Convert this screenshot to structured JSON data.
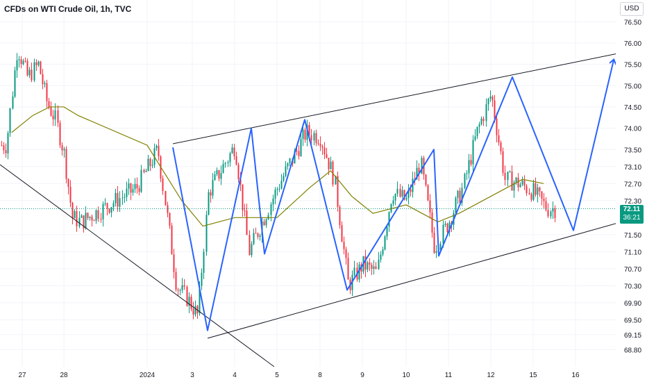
{
  "header": {
    "title": "CFDs on WTI Crude Oil, 1h, TVC",
    "currency_button": "USD"
  },
  "price_badge": {
    "last_price": "72.11",
    "countdown": "36:21"
  },
  "colors": {
    "up_candle": "#089981",
    "down_candle": "#f23645",
    "moving_average": "#808000",
    "zigzag": "#2962ff",
    "trendline": "#131722",
    "last_price_line": "#089981"
  },
  "chart_data": {
    "type": "candlestick",
    "title": "CFDs on WTI Crude Oil, 1h, TVC",
    "y_axis_labels": [
      "76.50",
      "76.00",
      "75.50",
      "75.00",
      "74.50",
      "74.00",
      "73.50",
      "73.10",
      "72.70",
      "72.30",
      "71.50",
      "71.10",
      "70.70",
      "70.30",
      "69.90",
      "69.50",
      "69.15",
      "68.80"
    ],
    "x_axis_labels": [
      "27",
      "28",
      "2024",
      "3",
      "4",
      "5",
      "8",
      "9",
      "10",
      "11",
      "12",
      "15",
      "16"
    ],
    "ylim": [
      68.5,
      76.8
    ],
    "last_price": 72.11,
    "close_series": [
      {
        "x": "27",
        "y": 73.6
      },
      {
        "x": "27",
        "y": 75.9
      },
      {
        "x": "27",
        "y": 75.2
      },
      {
        "x": "27",
        "y": 75.5
      },
      {
        "x": "28",
        "y": 74.6
      },
      {
        "x": "28",
        "y": 74.2
      },
      {
        "x": "28",
        "y": 73.4
      },
      {
        "x": "28",
        "y": 71.9
      },
      {
        "x": "28",
        "y": 71.8
      },
      {
        "x": "2024",
        "y": 72.6
      },
      {
        "x": "2024",
        "y": 73.5
      },
      {
        "x": "3",
        "y": 70.3
      },
      {
        "x": "3",
        "y": 70.0
      },
      {
        "x": "3",
        "y": 69.6
      },
      {
        "x": "3",
        "y": 72.5
      },
      {
        "x": "4",
        "y": 73.0
      },
      {
        "x": "4",
        "y": 73.6
      },
      {
        "x": "4",
        "y": 71.1
      },
      {
        "x": "5",
        "y": 72.6
      },
      {
        "x": "8",
        "y": 73.9
      },
      {
        "x": "8",
        "y": 73.8
      },
      {
        "x": "8",
        "y": 72.8
      },
      {
        "x": "9",
        "y": 70.3
      },
      {
        "x": "9",
        "y": 70.8
      },
      {
        "x": "9",
        "y": 70.6
      },
      {
        "x": "10",
        "y": 72.5
      },
      {
        "x": "10",
        "y": 72.3
      },
      {
        "x": "10",
        "y": 73.2
      },
      {
        "x": "11",
        "y": 71.2
      },
      {
        "x": "11",
        "y": 71.8
      },
      {
        "x": "11",
        "y": 72.6
      },
      {
        "x": "12",
        "y": 73.9
      },
      {
        "x": "12",
        "y": 74.8
      },
      {
        "x": "12",
        "y": 72.8
      },
      {
        "x": "15",
        "y": 72.7
      },
      {
        "x": "15",
        "y": 72.5
      },
      {
        "x": "15",
        "y": 72.11
      }
    ],
    "moving_average": [
      {
        "x": "27",
        "y": 73.9
      },
      {
        "x": "27",
        "y": 74.3
      },
      {
        "x": "28",
        "y": 74.5
      },
      {
        "x": "28",
        "y": 74.5
      },
      {
        "x": "28",
        "y": 74.3
      },
      {
        "x": "2024",
        "y": 73.6
      },
      {
        "x": "3",
        "y": 72.3
      },
      {
        "x": "3",
        "y": 71.7
      },
      {
        "x": "4",
        "y": 71.9
      },
      {
        "x": "5",
        "y": 71.9
      },
      {
        "x": "8",
        "y": 72.6
      },
      {
        "x": "8",
        "y": 73.0
      },
      {
        "x": "9",
        "y": 72.4
      },
      {
        "x": "9",
        "y": 72.0
      },
      {
        "x": "10",
        "y": 72.2
      },
      {
        "x": "11",
        "y": 71.8
      },
      {
        "x": "11",
        "y": 72.0
      },
      {
        "x": "12",
        "y": 72.4
      },
      {
        "x": "15",
        "y": 72.8
      },
      {
        "x": "15",
        "y": 72.7
      }
    ],
    "zigzag_pattern": [
      {
        "x": "2024",
        "y": 73.55
      },
      {
        "x": "3",
        "y": 69.25
      },
      {
        "x": "4",
        "y": 74.0
      },
      {
        "x": "5",
        "y": 71.05
      },
      {
        "x": "8",
        "y": 74.2
      },
      {
        "x": "9",
        "y": 70.2
      },
      {
        "x": "10",
        "y": 73.5
      },
      {
        "x": "11",
        "y": 71.0
      },
      {
        "x": "12",
        "y": 75.2
      },
      {
        "x": "16",
        "y": 71.6
      },
      {
        "x": "16",
        "y": 75.6
      }
    ],
    "trendlines": [
      {
        "name": "upper channel",
        "from": {
          "x": "2024",
          "y": 73.6
        },
        "to": {
          "x": "16",
          "y": 75.7
        }
      },
      {
        "name": "lower channel",
        "from": {
          "x": "3",
          "y": 69.25
        },
        "to": {
          "x": "16",
          "y": 71.8
        }
      },
      {
        "name": "descending line",
        "from": {
          "x": "27",
          "y": 73.1
        },
        "to": {
          "x": "5",
          "y": 68.7
        }
      }
    ]
  }
}
